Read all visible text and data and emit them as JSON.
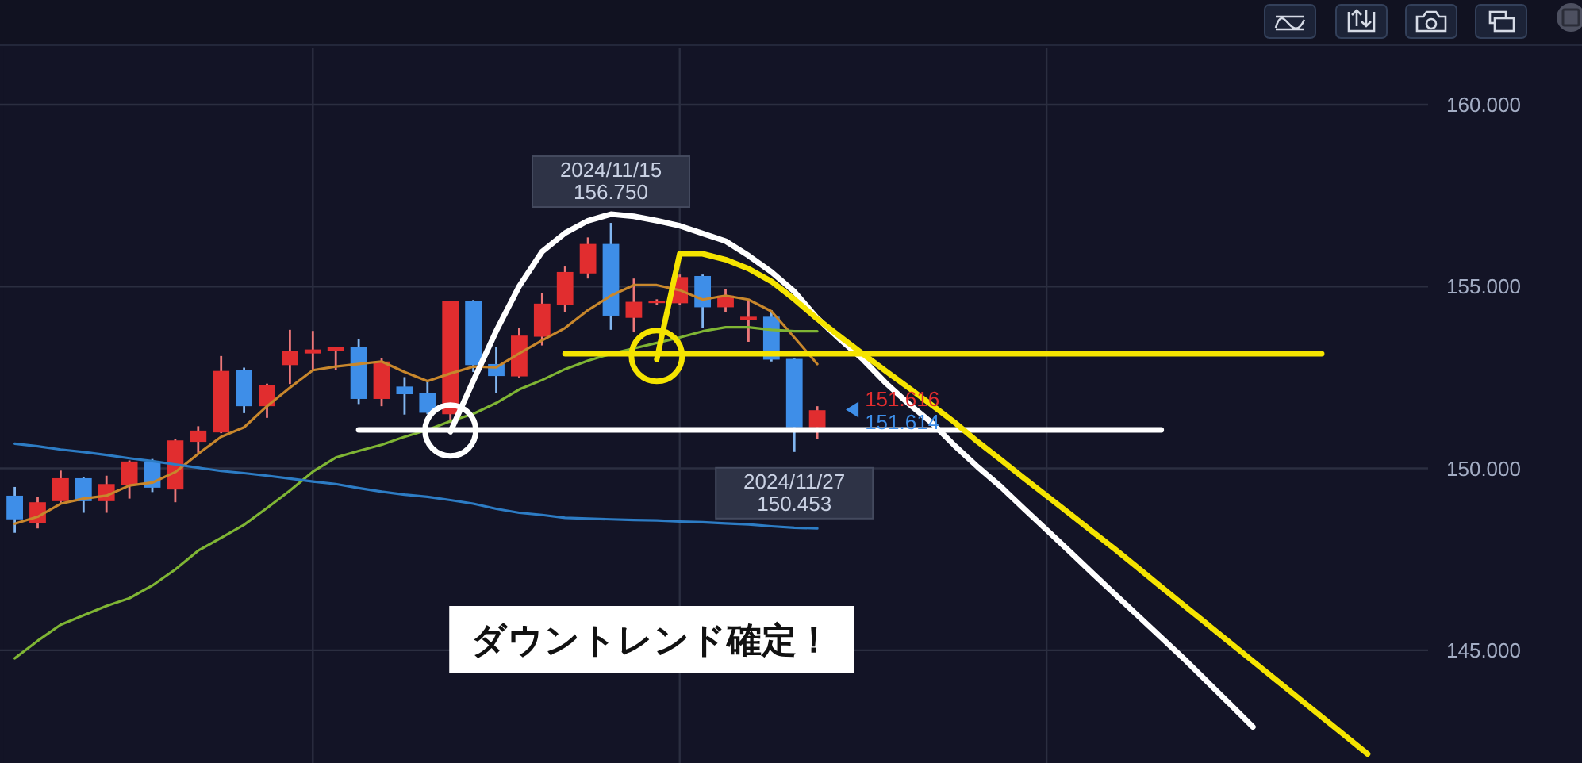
{
  "chart_data": {
    "type": "candlestick",
    "categories": [
      null,
      null,
      null,
      null,
      null,
      null,
      null,
      null,
      null,
      null,
      null,
      null,
      null,
      null,
      null,
      null,
      null,
      null,
      null,
      null,
      null,
      null,
      null,
      null,
      null,
      null,
      null,
      null,
      null,
      null,
      null,
      null,
      null,
      null,
      null,
      null,
      null,
      null,
      null,
      null,
      null,
      null,
      null,
      null,
      null,
      null,
      null,
      null,
      null,
      null,
      null,
      null,
      null,
      null,
      null,
      null,
      null,
      null,
      null,
      null,
      null,
      null
    ],
    "ohlc": [
      [
        149.25,
        149.49,
        148.23,
        148.6
      ],
      [
        148.49,
        149.22,
        148.35,
        149.07
      ],
      [
        149.1,
        149.94,
        149.05,
        149.73
      ],
      [
        149.73,
        149.75,
        148.78,
        149.1
      ],
      [
        149.1,
        149.8,
        148.78,
        149.57
      ],
      [
        149.54,
        150.22,
        149.17,
        150.19
      ],
      [
        150.19,
        150.26,
        149.35,
        149.47
      ],
      [
        149.42,
        150.81,
        149.07,
        150.77
      ],
      [
        150.73,
        151.16,
        150.43,
        151.04
      ],
      [
        150.99,
        153.09,
        150.97,
        152.68
      ],
      [
        152.7,
        152.77,
        151.52,
        151.71
      ],
      [
        151.71,
        152.33,
        151.39,
        152.29
      ],
      [
        152.84,
        153.81,
        152.32,
        153.23
      ],
      [
        153.16,
        153.78,
        152.7,
        153.27
      ],
      [
        153.22,
        153.33,
        152.7,
        153.33
      ],
      [
        153.33,
        153.55,
        151.77,
        151.91
      ],
      [
        151.91,
        153.04,
        151.71,
        152.94
      ],
      [
        152.25,
        152.51,
        151.48,
        152.04
      ],
      [
        152.07,
        152.43,
        151.49,
        151.53
      ],
      [
        151.49,
        154.61,
        151.25,
        154.61
      ],
      [
        154.61,
        154.63,
        152.65,
        152.84
      ],
      [
        152.87,
        153.33,
        152.07,
        152.54
      ],
      [
        152.53,
        153.86,
        152.5,
        153.65
      ],
      [
        153.62,
        154.83,
        153.38,
        154.53
      ],
      [
        154.49,
        155.55,
        154.29,
        155.4
      ],
      [
        155.36,
        156.35,
        155.22,
        156.17
      ],
      [
        156.17,
        156.75,
        153.81,
        154.2
      ],
      [
        154.14,
        155.22,
        153.74,
        154.58
      ],
      [
        154.55,
        154.65,
        154.5,
        154.61
      ],
      [
        154.54,
        155.33,
        154.49,
        155.26
      ],
      [
        155.29,
        155.33,
        153.86,
        154.43
      ],
      [
        154.43,
        154.93,
        154.29,
        154.75
      ],
      [
        154.07,
        154.61,
        153.48,
        154.17
      ],
      [
        154.17,
        154.35,
        152.94,
        152.99
      ],
      [
        153.01,
        153.02,
        150.453,
        151.13
      ],
      [
        151.13,
        151.71,
        150.81,
        151.6
      ],
      null,
      null,
      null,
      null,
      null,
      null,
      null,
      null,
      null,
      null,
      null,
      null,
      null,
      null,
      null,
      null,
      null,
      null,
      null,
      null,
      null,
      null,
      null,
      null,
      null,
      null
    ],
    "colors": [
      "#3e8ee8",
      "#e12d2f",
      "#e12d2f",
      "#3e8ee8",
      "#e12d2f",
      "#e12d2f",
      "#3e8ee8",
      "#e12d2f",
      "#e12d2f",
      "#e12d2f",
      "#3e8ee8",
      "#e12d2f",
      "#e12d2f",
      "#e12d2f",
      "#e12d2f",
      "#3e8ee8",
      "#e12d2f",
      "#3e8ee8",
      "#3e8ee8",
      "#e12d2f",
      "#3e8ee8",
      "#3e8ee8",
      "#e12d2f",
      "#e12d2f",
      "#e12d2f",
      "#e12d2f",
      "#3e8ee8",
      "#e12d2f",
      "#e12d2f",
      "#e12d2f",
      "#3e8ee8",
      "#e12d2f",
      "#e12d2f",
      "#3e8ee8",
      "#3e8ee8",
      "#e12d2f",
      null,
      null,
      null,
      null,
      null,
      null,
      null,
      null,
      null,
      null,
      null,
      null,
      null,
      null,
      null,
      null,
      null,
      null,
      null,
      null,
      null,
      null,
      null,
      null,
      null,
      null
    ],
    "series": [
      {
        "type": "line",
        "color": "#c8872c",
        "values": [
          148.48,
          148.67,
          149.03,
          149.17,
          149.25,
          149.53,
          149.61,
          149.9,
          150.4,
          150.87,
          151.13,
          151.71,
          152.22,
          152.7,
          152.8,
          152.87,
          152.94,
          152.65,
          152.4,
          152.61,
          152.8,
          152.78,
          153.16,
          153.52,
          153.86,
          154.35,
          154.75,
          155.04,
          155.04,
          154.9,
          154.64,
          154.75,
          154.64,
          154.32,
          153.6,
          152.87,
          null,
          null,
          null,
          null,
          null,
          null,
          null,
          null,
          null,
          null,
          null,
          null,
          null,
          null,
          null,
          null,
          null,
          null,
          null,
          null,
          null,
          null,
          null,
          null,
          null,
          null
        ]
      },
      {
        "type": "line",
        "color": "#7fb534",
        "values": [
          144.78,
          145.26,
          145.7,
          145.96,
          146.22,
          146.43,
          146.78,
          147.22,
          147.74,
          148.09,
          148.45,
          148.91,
          149.39,
          149.91,
          150.3,
          150.48,
          150.65,
          150.87,
          151.06,
          151.3,
          151.5,
          151.8,
          152.17,
          152.43,
          152.73,
          152.96,
          153.15,
          153.3,
          153.45,
          153.6,
          153.77,
          153.88,
          153.88,
          153.81,
          153.77,
          153.77,
          null,
          null,
          null,
          null,
          null,
          null,
          null,
          null,
          null,
          null,
          null,
          null,
          null,
          null,
          null,
          null,
          null,
          null,
          null,
          null,
          null,
          null,
          null,
          null,
          null,
          null
        ]
      },
      {
        "type": "line",
        "color": "#2d7cc4",
        "values": [
          150.68,
          150.61,
          150.52,
          150.45,
          150.37,
          150.28,
          150.2,
          150.11,
          150.02,
          149.93,
          149.87,
          149.8,
          149.72,
          149.64,
          149.57,
          149.46,
          149.36,
          149.28,
          149.22,
          149.13,
          149.03,
          148.89,
          148.78,
          148.72,
          148.64,
          148.62,
          148.6,
          148.58,
          148.57,
          148.54,
          148.52,
          148.49,
          148.46,
          148.41,
          148.37,
          148.35,
          null,
          null,
          null,
          null,
          null,
          null,
          null,
          null,
          null,
          null,
          null,
          null,
          null,
          null,
          null,
          null,
          null,
          null,
          null,
          null,
          null,
          null,
          null,
          null,
          null,
          null
        ]
      },
      {
        "type": "line",
        "color": "#ffffff",
        "values": [
          null,
          null,
          null,
          null,
          null,
          null,
          null,
          null,
          null,
          null,
          null,
          null,
          null,
          null,
          null,
          null,
          null,
          null,
          null,
          151.01,
          152.41,
          153.78,
          155.01,
          155.96,
          156.47,
          156.81,
          156.99,
          156.93,
          156.81,
          156.67,
          156.46,
          156.25,
          155.85,
          155.4,
          154.86,
          154.13,
          153.54,
          152.99,
          152.34,
          151.77,
          151.25,
          150.62,
          150.04,
          149.5,
          148.9,
          148.31,
          147.72,
          147.12,
          146.53,
          145.94,
          145.35,
          144.76,
          144.14,
          143.52,
          142.89,
          null,
          null,
          null,
          null,
          null,
          null,
          null
        ]
      },
      {
        "type": "line",
        "color": "#ffffff",
        "values": [
          null,
          null,
          null,
          null,
          null,
          null,
          null,
          null,
          null,
          null,
          null,
          null,
          null,
          null,
          null,
          151.06,
          151.06,
          151.06,
          151.06,
          151.06,
          151.06,
          151.06,
          151.06,
          151.06,
          151.06,
          151.06,
          151.06,
          151.06,
          151.06,
          151.06,
          151.06,
          151.06,
          151.06,
          151.06,
          151.06,
          151.06,
          151.06,
          151.06,
          151.06,
          151.06,
          151.06,
          151.06,
          151.06,
          151.06,
          151.06,
          151.06,
          151.06,
          151.06,
          151.06,
          151.06,
          151.06,
          null,
          null,
          null,
          null,
          null,
          null,
          null,
          null,
          null,
          null,
          null
        ]
      },
      {
        "type": "line",
        "color": "#f5e400",
        "values": [
          null,
          null,
          null,
          null,
          null,
          null,
          null,
          null,
          null,
          null,
          null,
          null,
          null,
          null,
          null,
          null,
          null,
          null,
          null,
          null,
          null,
          null,
          null,
          null,
          null,
          null,
          null,
          null,
          153.0,
          155.9,
          155.9,
          155.74,
          155.49,
          155.14,
          154.65,
          154.11,
          153.62,
          153.14,
          152.67,
          152.21,
          151.74,
          151.26,
          150.73,
          150.24,
          149.74,
          149.25,
          148.76,
          148.26,
          147.77,
          147.26,
          146.74,
          146.23,
          145.72,
          145.21,
          144.7,
          144.19,
          143.68,
          143.17,
          142.66,
          142.15,
          null,
          null
        ]
      },
      {
        "type": "line",
        "color": "#f5e400",
        "values": [
          null,
          null,
          null,
          null,
          null,
          null,
          null,
          null,
          null,
          null,
          null,
          null,
          null,
          null,
          null,
          null,
          null,
          null,
          null,
          null,
          null,
          null,
          null,
          null,
          153.15,
          153.15,
          153.15,
          153.15,
          153.15,
          153.15,
          153.15,
          153.15,
          153.15,
          153.15,
          153.15,
          153.15,
          153.15,
          153.15,
          153.15,
          153.15,
          153.15,
          153.15,
          153.15,
          153.15,
          153.15,
          153.15,
          153.15,
          153.15,
          153.15,
          153.15,
          153.15,
          153.15,
          153.15,
          153.15,
          153.15,
          153.15,
          153.15,
          153.15,
          null,
          null,
          null,
          null
        ]
      },
      {
        "type": "scatter",
        "marker": "circle",
        "color": "#ffffff",
        "values": [
          null,
          null,
          null,
          null,
          null,
          null,
          null,
          null,
          null,
          null,
          null,
          null,
          null,
          null,
          null,
          null,
          null,
          null,
          null,
          151.04,
          null,
          null,
          null,
          null,
          null,
          null,
          null,
          null,
          null,
          null,
          null,
          null,
          null,
          null,
          null,
          null,
          null,
          null,
          null,
          null,
          null,
          null,
          null,
          null,
          null,
          null,
          null,
          null,
          null,
          null,
          null,
          null,
          null,
          null,
          null,
          null,
          null,
          null,
          null,
          null,
          null,
          null
        ]
      },
      {
        "type": "scatter",
        "marker": "circle",
        "color": "#f5e400",
        "values": [
          null,
          null,
          null,
          null,
          null,
          null,
          null,
          null,
          null,
          null,
          null,
          null,
          null,
          null,
          null,
          null,
          null,
          null,
          null,
          null,
          null,
          null,
          null,
          null,
          null,
          null,
          null,
          null,
          153.09,
          null,
          null,
          null,
          null,
          null,
          null,
          null,
          null,
          null,
          null,
          null,
          null,
          null,
          null,
          null,
          null,
          null,
          null,
          null,
          null,
          null,
          null,
          null,
          null,
          null,
          null,
          null,
          null,
          null,
          null,
          null,
          null,
          null
        ]
      }
    ],
    "ylim": [
      141.9,
      161.57
    ],
    "yticks": [
      {
        "value": 145,
        "label": "145.000"
      },
      {
        "value": 150,
        "label": "150.000"
      },
      {
        "value": 155,
        "label": "155.000"
      },
      {
        "value": 160,
        "label": "160.000"
      }
    ],
    "grid": true,
    "annotations": [
      {
        "text": "2024/11/15\n156.750",
        "y": 156.75
      },
      {
        "text": "2024/11/27\n150.453",
        "y": 150.453
      },
      {
        "text": "151.616",
        "y": 151.616
      },
      {
        "text": "151.614",
        "y": 151.614
      },
      "ダウントレンド確定！"
    ]
  }
}
